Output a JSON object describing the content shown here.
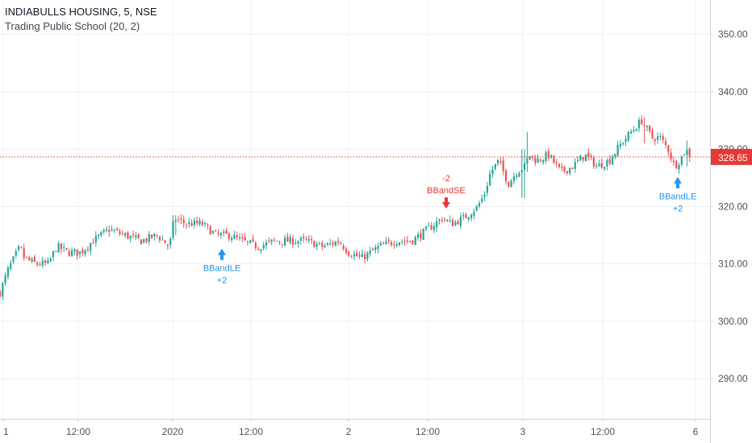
{
  "header": {
    "symbol_line": "INDIABULLS HOUSING, 5, NSE",
    "indicator_line": "Trading Public School (20, 2)"
  },
  "colors": {
    "up": "#26a69a",
    "down": "#ef5350",
    "price_line": "#e53935",
    "long_marker": "#2196f3",
    "short_marker": "#e53935",
    "grid": "#eef0f3",
    "axis_text": "#50535e",
    "separator": "#d1d4dc",
    "background": "#ffffff"
  },
  "chart_data": {
    "type": "candlestick",
    "ylim": [
      283,
      356
    ],
    "y_ticks": [
      290,
      300,
      310,
      320,
      330,
      340,
      350
    ],
    "y_tick_labels": [
      "290.00",
      "300.00",
      "310.00",
      "320.00",
      "330.00",
      "340.00",
      "350.00"
    ],
    "x_tick_labels": [
      "1",
      "12:00",
      "2020",
      "12:00",
      "2",
      "12:00",
      "3",
      "12:00",
      "6"
    ],
    "last_price": 328.65,
    "last_price_label": "328.65",
    "close_path": [
      [
        0,
        305
      ],
      [
        10,
        309
      ],
      [
        25,
        313
      ],
      [
        30,
        311
      ],
      [
        45,
        310
      ],
      [
        60,
        310
      ],
      [
        70,
        313
      ],
      [
        85,
        312
      ],
      [
        100,
        312
      ],
      [
        115,
        314
      ],
      [
        135,
        316
      ],
      [
        155,
        315
      ],
      [
        175,
        314
      ],
      [
        195,
        315
      ],
      [
        210,
        313
      ],
      [
        216,
        318
      ],
      [
        230,
        317
      ],
      [
        250,
        317
      ],
      [
        268,
        315
      ],
      [
        285,
        315
      ],
      [
        300,
        314
      ],
      [
        320,
        313
      ],
      [
        340,
        314
      ],
      [
        360,
        314
      ],
      [
        380,
        314
      ],
      [
        400,
        313
      ],
      [
        420,
        314
      ],
      [
        432,
        312
      ],
      [
        448,
        311
      ],
      [
        470,
        313
      ],
      [
        490,
        314
      ],
      [
        510,
        314
      ],
      [
        530,
        316
      ],
      [
        548,
        318
      ],
      [
        560,
        317
      ],
      [
        575,
        318
      ],
      [
        592,
        320
      ],
      [
        600,
        322
      ],
      [
        608,
        326
      ],
      [
        618,
        328
      ],
      [
        630,
        324
      ],
      [
        640,
        326
      ],
      [
        650,
        327
      ],
      [
        656,
        329
      ],
      [
        665,
        328
      ],
      [
        680,
        329
      ],
      [
        695,
        326
      ],
      [
        710,
        327
      ],
      [
        725,
        329
      ],
      [
        740,
        327
      ],
      [
        755,
        328
      ],
      [
        770,
        331
      ],
      [
        782,
        333
      ],
      [
        795,
        335
      ],
      [
        808,
        332
      ],
      [
        818,
        332
      ],
      [
        828,
        330
      ],
      [
        836,
        327
      ],
      [
        842,
        328
      ],
      [
        850,
        330
      ],
      [
        856,
        328.65
      ]
    ],
    "annotations": [
      {
        "side": "long",
        "label": "BBandLE",
        "qty": "+2",
        "x_index": 275,
        "price": 313.5
      },
      {
        "side": "short",
        "label": "BBandSE",
        "qty": "-2",
        "x_index": 553,
        "price": 318.8
      },
      {
        "side": "long",
        "label": "BBandLE",
        "qty": "+2",
        "x_index": 840,
        "price": 326.0
      }
    ],
    "spikes": [
      {
        "x_index": 216,
        "high": 318.5,
        "low": 315
      },
      {
        "x_index": 654,
        "high": 333,
        "low": 326
      },
      {
        "x_index": 648,
        "high": 330,
        "low": 321.5
      },
      {
        "x_index": 798,
        "high": 335.5,
        "low": 331
      },
      {
        "x_index": 852,
        "high": 331.5,
        "low": 327
      }
    ]
  }
}
